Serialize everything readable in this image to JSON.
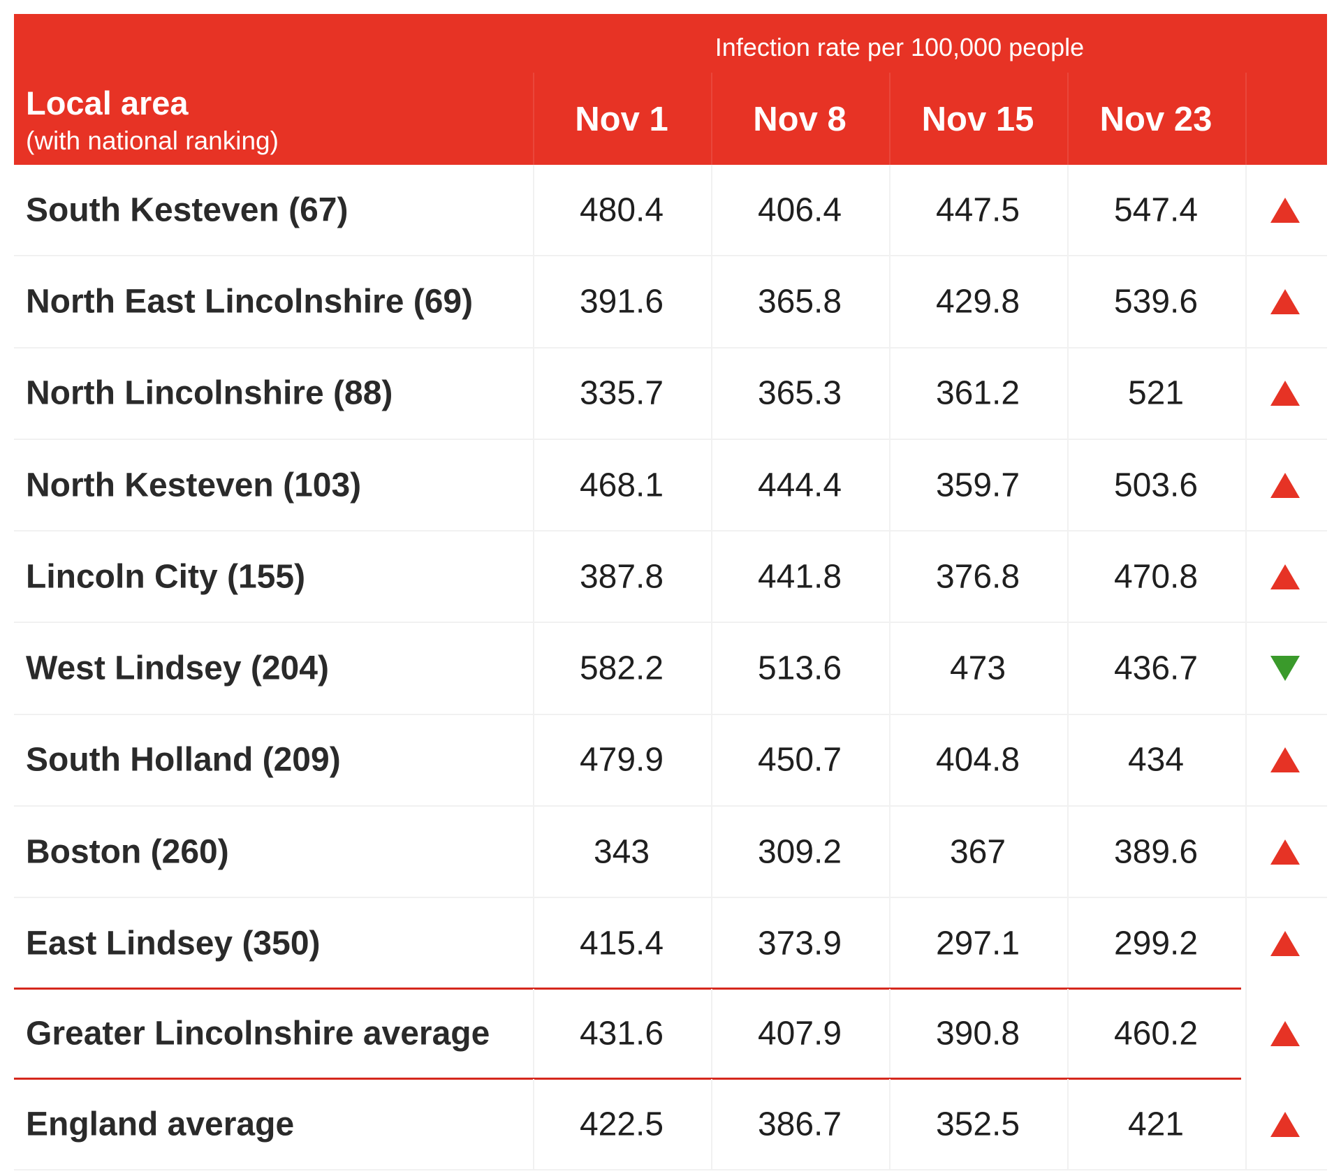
{
  "colors": {
    "header_bg": "#e73325",
    "header_text": "#ffffff",
    "up": "#e63325",
    "down": "#3a9a2b",
    "rule": "#d5281d"
  },
  "header": {
    "super": "Infection rate per 100,000 people",
    "local_area_title": "Local area",
    "local_area_subtitle": "(with national ranking)",
    "dates": [
      "Nov 1",
      "Nov 8",
      "Nov 15",
      "Nov 23"
    ]
  },
  "rows": [
    {
      "area": "South Kesteven (67)",
      "values": [
        "480.4",
        "406.4",
        "447.5",
        "547.4"
      ],
      "trend": "up"
    },
    {
      "area": "North East Lincolnshire (69)",
      "values": [
        "391.6",
        "365.8",
        "429.8",
        "539.6"
      ],
      "trend": "up"
    },
    {
      "area": "North Lincolnshire (88)",
      "values": [
        "335.7",
        "365.3",
        "361.2",
        "521"
      ],
      "trend": "up"
    },
    {
      "area": "North Kesteven (103)",
      "values": [
        "468.1",
        "444.4",
        "359.7",
        "503.6"
      ],
      "trend": "up"
    },
    {
      "area": "Lincoln City (155)",
      "values": [
        "387.8",
        "441.8",
        "376.8",
        "470.8"
      ],
      "trend": "up"
    },
    {
      "area": "West Lindsey (204)",
      "values": [
        "582.2",
        "513.6",
        "473",
        "436.7"
      ],
      "trend": "down"
    },
    {
      "area": "South Holland (209)",
      "values": [
        "479.9",
        "450.7",
        "404.8",
        "434"
      ],
      "trend": "up"
    },
    {
      "area": "Boston (260)",
      "values": [
        "343",
        "309.2",
        "367",
        "389.6"
      ],
      "trend": "up"
    },
    {
      "area": "East Lindsey (350)",
      "values": [
        "415.4",
        "373.9",
        "297.1",
        "299.2"
      ],
      "trend": "up",
      "rule_below": true
    },
    {
      "area": "Greater Lincolnshire average",
      "values": [
        "431.6",
        "407.9",
        "390.8",
        "460.2"
      ],
      "trend": "up",
      "rule_below": true
    },
    {
      "area": "England average",
      "values": [
        "422.5",
        "386.7",
        "352.5",
        "421"
      ],
      "trend": "up"
    }
  ],
  "chart_data": {
    "type": "table",
    "title": "Infection rate per 100,000 people",
    "columns": [
      "Local area (with national ranking)",
      "Nov 1",
      "Nov 8",
      "Nov 15",
      "Nov 23"
    ],
    "rows": [
      [
        "South Kesteven (67)",
        480.4,
        406.4,
        447.5,
        547.4
      ],
      [
        "North East Lincolnshire (69)",
        391.6,
        365.8,
        429.8,
        539.6
      ],
      [
        "North Lincolnshire (88)",
        335.7,
        365.3,
        361.2,
        521
      ],
      [
        "North Kesteven (103)",
        468.1,
        444.4,
        359.7,
        503.6
      ],
      [
        "Lincoln City (155)",
        387.8,
        441.8,
        376.8,
        470.8
      ],
      [
        "West Lindsey (204)",
        582.2,
        513.6,
        473,
        436.7
      ],
      [
        "South Holland (209)",
        479.9,
        450.7,
        404.8,
        434
      ],
      [
        "Boston (260)",
        343,
        309.2,
        367,
        389.6
      ],
      [
        "East Lindsey (350)",
        415.4,
        373.9,
        297.1,
        299.2
      ],
      [
        "Greater Lincolnshire average",
        431.6,
        407.9,
        390.8,
        460.2
      ],
      [
        "England average",
        422.5,
        386.7,
        352.5,
        421
      ]
    ],
    "trend": [
      "up",
      "up",
      "up",
      "up",
      "up",
      "down",
      "up",
      "up",
      "up",
      "up",
      "up"
    ]
  }
}
